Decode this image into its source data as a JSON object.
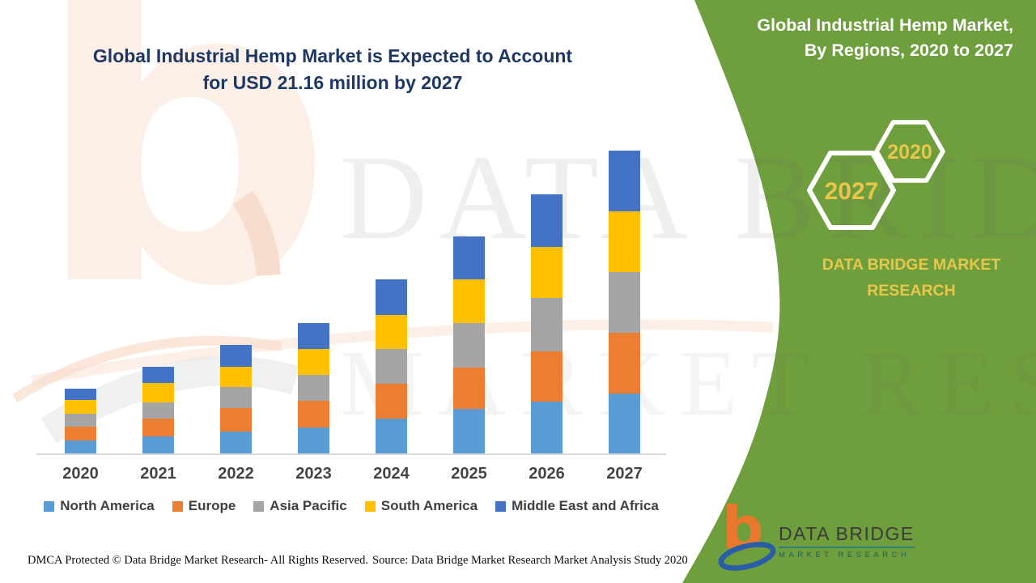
{
  "header": {
    "main_title_line1": "Global Industrial Hemp Market is Expected to Account",
    "main_title_line2": "for USD 21.16 million by 2027",
    "panel_title_line1": "Global Industrial Hemp Market,",
    "panel_title_line2": "By Regions, 2020 to 2027"
  },
  "side_panel": {
    "hexagons": [
      {
        "label": "2027"
      },
      {
        "label": "2020"
      }
    ],
    "brand_line1": "DATA BRIDGE MARKET",
    "brand_line2": "RESEARCH"
  },
  "chart_data": {
    "type": "bar",
    "stacked": true,
    "title": "Global Industrial Hemp Market, By Regions, 2020 to 2027",
    "unit": "USD million",
    "categories": [
      "2020",
      "2021",
      "2022",
      "2023",
      "2024",
      "2025",
      "2026",
      "2027"
    ],
    "series": [
      {
        "name": "North America",
        "color": "#5B9BD5",
        "values": [
          0.91,
          1.19,
          1.53,
          1.79,
          2.43,
          3.13,
          3.62,
          4.2
        ]
      },
      {
        "name": "Europe",
        "color": "#ED7D31",
        "values": [
          0.98,
          1.26,
          1.62,
          1.92,
          2.42,
          2.87,
          3.53,
          4.25
        ]
      },
      {
        "name": "Asia Pacific",
        "color": "#A5A5A5",
        "values": [
          0.87,
          1.13,
          1.49,
          1.77,
          2.47,
          3.11,
          3.72,
          4.25
        ]
      },
      {
        "name": "South America",
        "color": "#FFC000",
        "values": [
          0.98,
          1.34,
          1.45,
          1.85,
          2.34,
          3.06,
          3.58,
          4.2
        ]
      },
      {
        "name": "Middle East and Africa",
        "color": "#4472C4",
        "values": [
          0.79,
          1.15,
          1.53,
          1.81,
          2.49,
          2.98,
          3.64,
          4.26
        ]
      }
    ],
    "totals_by_year": [
      4.53,
      6.07,
      7.62,
      9.14,
      12.15,
      15.15,
      18.09,
      21.16
    ],
    "ylim": [
      0,
      22
    ],
    "gridlines": false,
    "legend_position": "bottom"
  },
  "watermark": {
    "line1": "DATA BRIDGE",
    "line2": "MARKET RESEARCH"
  },
  "logo": {
    "name": "DATA BRIDGE",
    "subtitle": "MARKET RESEARCH"
  },
  "footer": {
    "dmca": "DMCA Protected © Data Bridge Market Research- All Rights Reserved.",
    "source": "Source: Data Bridge Market Research Market Analysis Study 2020"
  },
  "colors": {
    "panel_green": "#6f9e3d",
    "title_blue": "#1e3866",
    "accent_yellow": "#e8c64a",
    "axis_gray": "#d9d9d9",
    "hexagon_outline": "#ffffff"
  }
}
